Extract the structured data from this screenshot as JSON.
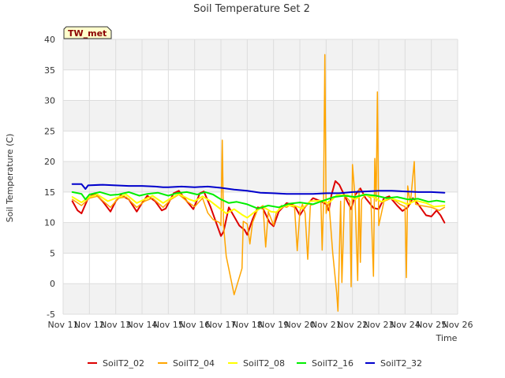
{
  "chart_data": {
    "type": "line",
    "title": "Soil Temperature Set 2",
    "xlabel": "Time",
    "ylabel": "Soil Temperature (C)",
    "badge": "TW_met",
    "xlim": [
      0,
      15
    ],
    "ylim": [
      -5,
      40
    ],
    "x_ticks": [
      "Nov 11",
      "Nov 12",
      "Nov 13",
      "Nov 14",
      "Nov 15",
      "Nov 16",
      "Nov 17",
      "Nov 18",
      "Nov 19",
      "Nov 20",
      "Nov 21",
      "Nov 22",
      "Nov 23",
      "Nov 24",
      "Nov 25",
      "Nov 26"
    ],
    "y_ticks": [
      -5,
      0,
      5,
      10,
      15,
      20,
      25,
      30,
      35,
      40
    ],
    "x_unit": "days since Nov 11",
    "legend_position": "bottom",
    "series": [
      {
        "name": "SoilT2_02",
        "color": "#dd0000",
        "points": [
          [
            0.35,
            13.5
          ],
          [
            0.55,
            12.0
          ],
          [
            0.7,
            11.5
          ],
          [
            0.95,
            14.0
          ],
          [
            1.2,
            14.8
          ],
          [
            1.5,
            13.5
          ],
          [
            1.8,
            11.8
          ],
          [
            2.0,
            13.5
          ],
          [
            2.2,
            14.5
          ],
          [
            2.5,
            13.8
          ],
          [
            2.8,
            11.8
          ],
          [
            3.0,
            13.2
          ],
          [
            3.2,
            14.4
          ],
          [
            3.5,
            13.5
          ],
          [
            3.75,
            12.0
          ],
          [
            3.9,
            12.3
          ],
          [
            4.2,
            14.8
          ],
          [
            4.4,
            15.2
          ],
          [
            4.7,
            13.5
          ],
          [
            4.95,
            12.2
          ],
          [
            5.2,
            14.8
          ],
          [
            5.35,
            15.1
          ],
          [
            5.6,
            12.6
          ],
          [
            5.9,
            9.0
          ],
          [
            6.0,
            7.8
          ],
          [
            6.1,
            8.5
          ],
          [
            6.3,
            12.5
          ],
          [
            6.5,
            11.0
          ],
          [
            6.7,
            9.5
          ],
          [
            6.9,
            8.8
          ],
          [
            7.0,
            8.0
          ],
          [
            7.2,
            10.5
          ],
          [
            7.4,
            12.5
          ],
          [
            7.6,
            12.3
          ],
          [
            7.85,
            10.0
          ],
          [
            8.0,
            9.4
          ],
          [
            8.2,
            11.8
          ],
          [
            8.5,
            13.2
          ],
          [
            8.8,
            12.8
          ],
          [
            9.0,
            11.2
          ],
          [
            9.2,
            12.6
          ],
          [
            9.5,
            14.0
          ],
          [
            9.8,
            13.5
          ],
          [
            10.0,
            13.0
          ],
          [
            10.1,
            12.0
          ],
          [
            10.2,
            14.5
          ],
          [
            10.35,
            16.8
          ],
          [
            10.5,
            16.2
          ],
          [
            10.8,
            13.5
          ],
          [
            10.95,
            12.2
          ],
          [
            11.1,
            14.5
          ],
          [
            11.3,
            15.6
          ],
          [
            11.5,
            14.0
          ],
          [
            11.8,
            12.4
          ],
          [
            12.0,
            12.2
          ],
          [
            12.2,
            14.0
          ],
          [
            12.4,
            14.3
          ],
          [
            12.7,
            12.8
          ],
          [
            12.9,
            11.9
          ],
          [
            13.1,
            12.5
          ],
          [
            13.3,
            14.0
          ],
          [
            13.5,
            13.0
          ],
          [
            13.8,
            11.2
          ],
          [
            14.0,
            11.0
          ],
          [
            14.2,
            12.0
          ],
          [
            14.35,
            11.2
          ],
          [
            14.5,
            10.0
          ]
        ]
      },
      {
        "name": "SoilT2_04",
        "color": "#ffa500",
        "points": [
          [
            0.35,
            13.8
          ],
          [
            0.7,
            12.8
          ],
          [
            1.0,
            14.0
          ],
          [
            1.3,
            14.3
          ],
          [
            1.5,
            13.6
          ],
          [
            1.8,
            12.5
          ],
          [
            2.1,
            14.0
          ],
          [
            2.4,
            14.2
          ],
          [
            2.8,
            12.5
          ],
          [
            3.1,
            13.5
          ],
          [
            3.4,
            14.0
          ],
          [
            3.8,
            12.5
          ],
          [
            4.1,
            13.8
          ],
          [
            4.4,
            14.6
          ],
          [
            4.7,
            13.5
          ],
          [
            5.0,
            12.6
          ],
          [
            5.3,
            14.0
          ],
          [
            5.5,
            11.6
          ],
          [
            5.7,
            10.5
          ],
          [
            5.95,
            10.0
          ],
          [
            6.0,
            9.5
          ],
          [
            6.05,
            23.5
          ],
          [
            6.1,
            9.5
          ],
          [
            6.2,
            4.5
          ],
          [
            6.5,
            -1.8
          ],
          [
            6.8,
            2.5
          ],
          [
            6.85,
            10.2
          ],
          [
            7.0,
            9.8
          ],
          [
            7.1,
            6.5
          ],
          [
            7.2,
            10.0
          ],
          [
            7.4,
            12.2
          ],
          [
            7.6,
            12.8
          ],
          [
            7.7,
            6.0
          ],
          [
            7.8,
            11.8
          ],
          [
            8.0,
            9.6
          ],
          [
            8.1,
            11.5
          ],
          [
            8.3,
            12.8
          ],
          [
            8.5,
            12.5
          ],
          [
            8.6,
            12.8
          ],
          [
            8.8,
            12.5
          ],
          [
            8.9,
            5.4
          ],
          [
            9.0,
            11.8
          ],
          [
            9.1,
            13.0
          ],
          [
            9.2,
            11.5
          ],
          [
            9.3,
            4.0
          ],
          [
            9.4,
            12.8
          ],
          [
            9.6,
            13.2
          ],
          [
            9.8,
            13.5
          ],
          [
            9.85,
            5.5
          ],
          [
            9.9,
            13.3
          ],
          [
            9.95,
            37.5
          ],
          [
            10.0,
            11.5
          ],
          [
            10.1,
            13.5
          ],
          [
            10.25,
            5.0
          ],
          [
            10.4,
            -1.5
          ],
          [
            10.45,
            -4.5
          ],
          [
            10.55,
            13.5
          ],
          [
            10.6,
            0.2
          ],
          [
            10.7,
            14.5
          ],
          [
            10.9,
            13.5
          ],
          [
            10.95,
            -0.5
          ],
          [
            11.0,
            19.5
          ],
          [
            11.1,
            14.0
          ],
          [
            11.2,
            0.5
          ],
          [
            11.25,
            15.5
          ],
          [
            11.3,
            3.5
          ],
          [
            11.35,
            13.8
          ],
          [
            11.5,
            14.6
          ],
          [
            11.7,
            14.0
          ],
          [
            11.8,
            1.2
          ],
          [
            11.85,
            20.5
          ],
          [
            11.9,
            13.5
          ],
          [
            11.95,
            31.4
          ],
          [
            12.0,
            9.5
          ],
          [
            12.2,
            13.5
          ],
          [
            12.5,
            14.0
          ],
          [
            12.8,
            13.0
          ],
          [
            13.0,
            12.6
          ],
          [
            13.05,
            1.0
          ],
          [
            13.1,
            16.0
          ],
          [
            13.2,
            13.0
          ],
          [
            13.35,
            20.0
          ],
          [
            13.4,
            13.0
          ],
          [
            13.6,
            12.8
          ],
          [
            14.0,
            12.5
          ],
          [
            14.3,
            12.0
          ],
          [
            14.5,
            12.5
          ]
        ]
      },
      {
        "name": "SoilT2_08",
        "color": "#ffff00",
        "points": [
          [
            0.35,
            14.2
          ],
          [
            0.7,
            13.3
          ],
          [
            1.0,
            14.2
          ],
          [
            1.3,
            14.6
          ],
          [
            1.7,
            13.5
          ],
          [
            2.0,
            14.0
          ],
          [
            2.4,
            14.6
          ],
          [
            2.8,
            13.2
          ],
          [
            3.1,
            13.8
          ],
          [
            3.4,
            14.4
          ],
          [
            3.8,
            13.2
          ],
          [
            4.1,
            14.0
          ],
          [
            4.4,
            14.7
          ],
          [
            4.8,
            13.8
          ],
          [
            5.0,
            13.5
          ],
          [
            5.3,
            14.3
          ],
          [
            5.6,
            13.5
          ],
          [
            5.9,
            12.5
          ],
          [
            6.2,
            11.5
          ],
          [
            6.5,
            12.2
          ],
          [
            6.8,
            11.3
          ],
          [
            7.0,
            10.8
          ],
          [
            7.3,
            11.8
          ],
          [
            7.6,
            12.6
          ],
          [
            7.9,
            11.8
          ],
          [
            8.1,
            11.7
          ],
          [
            8.4,
            12.8
          ],
          [
            8.8,
            12.8
          ],
          [
            9.1,
            12.3
          ],
          [
            9.4,
            13.5
          ],
          [
            9.8,
            13.6
          ],
          [
            10.1,
            13.2
          ],
          [
            10.4,
            14.5
          ],
          [
            10.8,
            14.5
          ],
          [
            11.1,
            13.8
          ],
          [
            11.4,
            14.6
          ],
          [
            11.8,
            14.2
          ],
          [
            12.1,
            13.4
          ],
          [
            12.4,
            14.0
          ],
          [
            12.8,
            13.5
          ],
          [
            13.1,
            13.0
          ],
          [
            13.4,
            13.6
          ],
          [
            13.8,
            13.2
          ],
          [
            14.1,
            12.6
          ],
          [
            14.5,
            12.8
          ]
        ]
      },
      {
        "name": "SoilT2_16",
        "color": "#00ee00",
        "points": [
          [
            0.35,
            15.0
          ],
          [
            0.7,
            14.7
          ],
          [
            0.85,
            13.8
          ],
          [
            1.0,
            14.6
          ],
          [
            1.4,
            15.0
          ],
          [
            1.8,
            14.5
          ],
          [
            2.1,
            14.6
          ],
          [
            2.5,
            15.0
          ],
          [
            2.9,
            14.4
          ],
          [
            3.2,
            14.7
          ],
          [
            3.6,
            14.9
          ],
          [
            4.0,
            14.4
          ],
          [
            4.3,
            14.8
          ],
          [
            4.7,
            15.0
          ],
          [
            5.1,
            14.6
          ],
          [
            5.4,
            15.0
          ],
          [
            5.7,
            14.6
          ],
          [
            6.0,
            13.8
          ],
          [
            6.3,
            13.2
          ],
          [
            6.6,
            13.4
          ],
          [
            7.0,
            13.0
          ],
          [
            7.4,
            12.3
          ],
          [
            7.8,
            12.8
          ],
          [
            8.2,
            12.5
          ],
          [
            8.6,
            13.1
          ],
          [
            9.0,
            13.3
          ],
          [
            9.5,
            13.0
          ],
          [
            9.9,
            13.6
          ],
          [
            10.3,
            14.2
          ],
          [
            10.7,
            14.4
          ],
          [
            11.1,
            14.2
          ],
          [
            11.5,
            14.6
          ],
          [
            11.9,
            14.4
          ],
          [
            12.3,
            14.0
          ],
          [
            12.7,
            14.2
          ],
          [
            13.1,
            13.8
          ],
          [
            13.5,
            13.9
          ],
          [
            13.9,
            13.4
          ],
          [
            14.2,
            13.6
          ],
          [
            14.5,
            13.4
          ]
        ]
      },
      {
        "name": "SoilT2_32",
        "color": "#0000cc",
        "points": [
          [
            0.35,
            16.3
          ],
          [
            0.7,
            16.3
          ],
          [
            0.85,
            15.5
          ],
          [
            0.95,
            16.1
          ],
          [
            1.5,
            16.2
          ],
          [
            2.0,
            16.1
          ],
          [
            2.5,
            16.0
          ],
          [
            3.0,
            16.0
          ],
          [
            3.5,
            15.9
          ],
          [
            3.8,
            15.8
          ],
          [
            4.0,
            15.8
          ],
          [
            4.5,
            15.9
          ],
          [
            5.0,
            15.8
          ],
          [
            5.5,
            15.9
          ],
          [
            6.0,
            15.7
          ],
          [
            6.5,
            15.4
          ],
          [
            7.0,
            15.2
          ],
          [
            7.5,
            14.9
          ],
          [
            8.0,
            14.8
          ],
          [
            8.5,
            14.7
          ],
          [
            9.0,
            14.7
          ],
          [
            9.5,
            14.7
          ],
          [
            10.0,
            14.8
          ],
          [
            10.5,
            14.8
          ],
          [
            11.0,
            15.0
          ],
          [
            11.5,
            15.1
          ],
          [
            12.0,
            15.2
          ],
          [
            12.5,
            15.2
          ],
          [
            13.0,
            15.1
          ],
          [
            13.5,
            15.0
          ],
          [
            14.0,
            15.0
          ],
          [
            14.5,
            14.9
          ]
        ]
      }
    ]
  }
}
